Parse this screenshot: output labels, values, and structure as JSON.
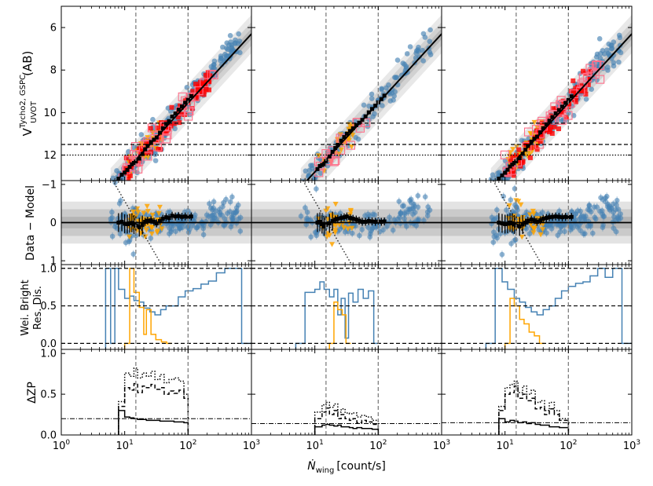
{
  "chart_data": {
    "type": "scatter",
    "layout": "4 rows x 3 columns of panels sharing x axes; left columns carry y tick labels",
    "x_axis": {
      "label": "Ṅ",
      "label_sub": "wing",
      "label_unit": "[count/s]",
      "scale": "log",
      "xlim": [
        1,
        1000
      ],
      "tick_labels_left_col": [
        "10^0",
        "10^1",
        "10^2",
        "10^3"
      ],
      "tick_labels_other_cols": [
        "10^1",
        "10^2",
        "10^3"
      ]
    },
    "vertical_lines": [
      15,
      100
    ],
    "colors": {
      "data_blue": "#4682b4",
      "orange": "#ffa500",
      "red": "#ff0000",
      "pink_box": "#ff6f8a",
      "band_gray": "#808080",
      "model": "#000000"
    },
    "rows": [
      {
        "name": "magnitude",
        "ylabel_main": "V",
        "ylabel_sup": "Tycho2, GSPC",
        "ylabel_sub": "UVOT",
        "ylabel_tail": "(AB)",
        "ylim": [
          13.2,
          5
        ],
        "yticks": [
          6,
          8,
          10,
          12
        ],
        "hlines": [
          {
            "y": 10.5,
            "style": "dashed"
          },
          {
            "y": 11.5,
            "style": "dashed"
          },
          {
            "y": 12.0,
            "style": "dotted"
          }
        ],
        "model_line": {
          "x": [
            7.5,
            1000
          ],
          "y": [
            13.2,
            6.3
          ]
        }
      },
      {
        "name": "residual",
        "ylabel": "Data − Model",
        "ylim": [
          1.1,
          -1.1
        ],
        "yticks": [
          -1,
          0,
          1
        ],
        "ytick_labels": [
          "−1",
          "0",
          "1"
        ],
        "hlines": [
          {
            "y": 0,
            "style": "solid"
          }
        ],
        "bands": [
          0.35,
          0.15,
          0.05
        ]
      },
      {
        "name": "weighted_bright_residual_dispersion",
        "ylabel_line1": "Wei. Bright",
        "ylabel_line2": "Res. Dis.",
        "ylim": [
          -0.08,
          1.05
        ],
        "yticks": [
          0.0,
          0.5,
          1.0
        ],
        "ytick_labels": [
          "0.0",
          "0.5",
          "1.0"
        ],
        "hlines": [
          {
            "y": 0,
            "style": "dashed"
          },
          {
            "y": 0.5,
            "style": "dashed"
          },
          {
            "y": 1.0,
            "style": "dashed"
          }
        ]
      },
      {
        "name": "delta_zp",
        "ylabel": "ΔZP",
        "ylim": [
          0,
          1.05
        ],
        "yticks": [
          0.0,
          0.5,
          1.0
        ],
        "ytick_labels": [
          "0.0",
          "0.5",
          "1.0"
        ]
      }
    ],
    "columns": [
      {
        "id": "col1",
        "binned_x": [
          8,
          9,
          10,
          11,
          12,
          13,
          14,
          15,
          17,
          19,
          21,
          23,
          26,
          29,
          32,
          36,
          40,
          45,
          50,
          56,
          63,
          71,
          80,
          90,
          100,
          112
        ],
        "binned_resid": [
          0.0,
          -0.02,
          0.03,
          0.04,
          0.02,
          0.01,
          0.05,
          0.08,
          0.12,
          0.06,
          -0.02,
          -0.05,
          -0.06,
          -0.02,
          0.02,
          -0.04,
          -0.1,
          -0.14,
          -0.12,
          -0.18,
          -0.16,
          -0.17,
          -0.15,
          -0.16,
          -0.15,
          -0.16
        ],
        "hist_blue": [
          [
            5,
            6,
            1.0
          ],
          [
            6,
            7,
            0.0
          ],
          [
            7,
            8,
            1.0
          ],
          [
            8,
            10,
            0.72
          ],
          [
            10,
            12,
            0.6
          ],
          [
            12,
            14,
            0.63
          ],
          [
            14,
            17,
            0.57
          ],
          [
            17,
            20,
            0.55
          ],
          [
            20,
            25,
            0.47
          ],
          [
            25,
            30,
            0.42
          ],
          [
            30,
            37,
            0.38
          ],
          [
            37,
            45,
            0.45
          ],
          [
            45,
            55,
            0.5
          ],
          [
            55,
            70,
            0.5
          ],
          [
            70,
            90,
            0.62
          ],
          [
            90,
            120,
            0.7
          ],
          [
            120,
            160,
            0.73
          ],
          [
            160,
            210,
            0.79
          ],
          [
            210,
            280,
            0.83
          ],
          [
            280,
            380,
            0.94
          ],
          [
            380,
            520,
            1.0
          ],
          [
            520,
            700,
            1.0
          ],
          [
            700,
            1000,
            0.0
          ]
        ],
        "hist_orange": [
          [
            10,
            12,
            0.0
          ],
          [
            12,
            14,
            1.0
          ],
          [
            14,
            17,
            0.68
          ],
          [
            17,
            20,
            0.48
          ],
          [
            20,
            22,
            0.12
          ],
          [
            22,
            26,
            0.45
          ],
          [
            26,
            31,
            0.12
          ],
          [
            31,
            38,
            0.05
          ],
          [
            38,
            46,
            0.02
          ],
          [
            46,
            55,
            0.0
          ]
        ],
        "zp_steps": {
          "x": [
            8,
            10,
            12,
            14,
            16,
            19,
            22,
            26,
            30,
            36,
            42,
            50,
            60,
            72,
            86,
            100
          ],
          "solid": [
            0.3,
            0.22,
            0.21,
            0.2,
            0.19,
            0.19,
            0.18,
            0.18,
            0.18,
            0.17,
            0.17,
            0.17,
            0.16,
            0.16,
            0.15,
            0.15
          ],
          "dashed": [
            0.35,
            0.58,
            0.55,
            0.63,
            0.52,
            0.6,
            0.58,
            0.62,
            0.56,
            0.58,
            0.5,
            0.54,
            0.51,
            0.55,
            0.45,
            0.45
          ],
          "dotted": [
            0.41,
            0.76,
            0.72,
            0.82,
            0.7,
            0.76,
            0.72,
            0.78,
            0.68,
            0.74,
            0.64,
            0.68,
            0.7,
            0.66,
            0.5,
            0.5
          ],
          "dashdot": 0.2
        }
      },
      {
        "id": "col2",
        "binned_x": [
          11,
          12,
          13,
          14,
          15,
          17,
          19,
          21,
          23,
          26,
          29,
          32,
          36,
          40,
          45,
          50,
          56,
          63,
          71,
          80,
          90,
          100,
          112,
          125
        ],
        "binned_resid": [
          0.0,
          -0.02,
          0.04,
          0.1,
          0.06,
          0.02,
          -0.04,
          -0.08,
          -0.1,
          -0.12,
          -0.14,
          -0.16,
          -0.12,
          -0.1,
          -0.08,
          -0.05,
          -0.02,
          -0.02,
          -0.04,
          -0.03,
          -0.02,
          -0.03,
          -0.02,
          -0.03
        ],
        "hist_blue": [
          [
            5,
            7,
            0.0
          ],
          [
            7,
            10,
            0.68
          ],
          [
            10,
            12,
            0.72
          ],
          [
            12,
            14,
            0.82
          ],
          [
            14,
            17,
            0.72
          ],
          [
            17,
            20,
            0.62
          ],
          [
            20,
            23,
            0.72
          ],
          [
            23,
            26,
            0.38
          ],
          [
            26,
            30,
            0.6
          ],
          [
            30,
            34,
            0.07
          ],
          [
            34,
            40,
            0.67
          ],
          [
            40,
            48,
            0.55
          ],
          [
            48,
            58,
            0.72
          ],
          [
            58,
            70,
            0.6
          ],
          [
            70,
            85,
            0.7
          ],
          [
            85,
            100,
            0.0
          ]
        ],
        "hist_orange": [
          [
            17,
            20,
            0.0
          ],
          [
            20,
            23,
            0.55
          ],
          [
            23,
            27,
            0.45
          ],
          [
            27,
            31,
            0.38
          ],
          [
            31,
            37,
            0.0
          ]
        ],
        "zp_steps": {
          "x": [
            10,
            13,
            15,
            17,
            20,
            23,
            26,
            30,
            35,
            40,
            46,
            55,
            65,
            80,
            100
          ],
          "solid": [
            0.1,
            0.12,
            0.13,
            0.12,
            0.11,
            0.12,
            0.1,
            0.1,
            0.09,
            0.08,
            0.09,
            0.08,
            0.08,
            0.07,
            0.07
          ],
          "dashed": [
            0.2,
            0.28,
            0.33,
            0.25,
            0.3,
            0.2,
            0.25,
            0.2,
            0.18,
            0.2,
            0.15,
            0.18,
            0.16,
            0.13,
            0.13
          ],
          "dotted": [
            0.28,
            0.37,
            0.4,
            0.34,
            0.38,
            0.28,
            0.32,
            0.27,
            0.26,
            0.27,
            0.22,
            0.24,
            0.22,
            0.18,
            0.18
          ],
          "dashdot": 0.14
        }
      },
      {
        "id": "col3",
        "binned_x": [
          8,
          9,
          10,
          11,
          12,
          13,
          14,
          15,
          17,
          19,
          21,
          23,
          26,
          29,
          32,
          36,
          40,
          45,
          50,
          56,
          63,
          71,
          80,
          90,
          100,
          112
        ],
        "binned_resid": [
          0.0,
          0.02,
          0.04,
          0.03,
          0.0,
          0.02,
          0.05,
          0.08,
          0.1,
          0.05,
          0.0,
          -0.05,
          -0.08,
          -0.06,
          -0.02,
          -0.06,
          -0.1,
          -0.12,
          -0.14,
          -0.15,
          -0.16,
          -0.15,
          -0.14,
          -0.15,
          -0.14,
          -0.15
        ],
        "hist_blue": [
          [
            5,
            7,
            0.0
          ],
          [
            7,
            9,
            1.0
          ],
          [
            9,
            11,
            0.82
          ],
          [
            11,
            14,
            0.72
          ],
          [
            14,
            17,
            0.6
          ],
          [
            17,
            21,
            0.55
          ],
          [
            21,
            26,
            0.48
          ],
          [
            26,
            32,
            0.42
          ],
          [
            32,
            40,
            0.38
          ],
          [
            40,
            50,
            0.45
          ],
          [
            50,
            62,
            0.5
          ],
          [
            62,
            78,
            0.6
          ],
          [
            78,
            100,
            0.7
          ],
          [
            100,
            130,
            0.76
          ],
          [
            130,
            170,
            0.8
          ],
          [
            170,
            220,
            0.82
          ],
          [
            220,
            290,
            0.9
          ],
          [
            290,
            380,
            1.0
          ],
          [
            380,
            500,
            0.88
          ],
          [
            500,
            700,
            1.0
          ],
          [
            700,
            1000,
            0.0
          ]
        ],
        "hist_orange": [
          [
            10,
            12,
            0.0
          ],
          [
            12,
            14,
            0.6
          ],
          [
            14,
            17,
            0.5
          ],
          [
            17,
            20,
            0.32
          ],
          [
            20,
            24,
            0.26
          ],
          [
            24,
            29,
            0.15
          ],
          [
            29,
            35,
            0.1
          ],
          [
            35,
            42,
            0.0
          ]
        ],
        "zp_steps": {
          "x": [
            8,
            10,
            12,
            14,
            16,
            19,
            22,
            26,
            30,
            36,
            42,
            50,
            60,
            72,
            86,
            100
          ],
          "solid": [
            0.2,
            0.16,
            0.18,
            0.17,
            0.15,
            0.16,
            0.14,
            0.15,
            0.13,
            0.12,
            0.12,
            0.1,
            0.1,
            0.09,
            0.09,
            0.09
          ],
          "dashed": [
            0.3,
            0.5,
            0.52,
            0.6,
            0.45,
            0.5,
            0.42,
            0.45,
            0.32,
            0.34,
            0.25,
            0.32,
            0.25,
            0.18,
            0.18,
            0.18
          ],
          "dotted": [
            0.35,
            0.58,
            0.62,
            0.66,
            0.52,
            0.6,
            0.5,
            0.55,
            0.4,
            0.42,
            0.3,
            0.4,
            0.3,
            0.2,
            0.2,
            0.2
          ],
          "dashdot": 0.15
        }
      }
    ]
  }
}
